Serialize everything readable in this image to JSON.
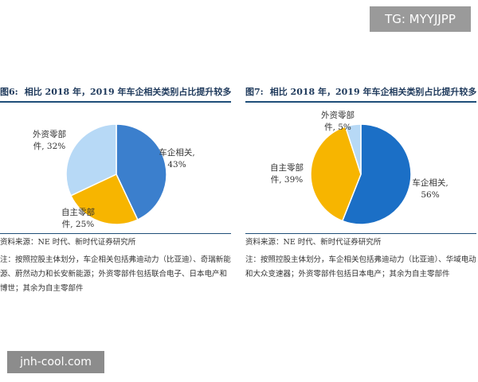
{
  "watermarks": {
    "top": "TG: MYYJJPP",
    "bottom": "jnh-cool.com"
  },
  "panels": [
    {
      "fig_num": "图6:",
      "title": "相比 2018 年，2019 年车企相关类别占比提升较多",
      "source": "资料来源：NE 时代、新时代证券研究所",
      "note": "注：按照控股主体划分，车企相关包括弗迪动力（比亚迪）、奇瑞新能源、蔚然动力和长安新能源；外资零部件包括联合电子、日本电产和博世；其余为自主零部件"
    },
    {
      "fig_num": "图7:",
      "title": "相比 2018 年，2019 年车企相关类别占比提升较多",
      "source": "资料来源：NE 时代、新时代证券研究所",
      "note": "注：按照控股主体划分，车企相关包括弗迪动力（比亚迪）、华域电动和大众变速器；外资零部件包括日本电产；其余为自主零部件"
    }
  ],
  "chart_data": [
    {
      "type": "pie",
      "slices": [
        {
          "label_lines": [
            "车企相关,",
            "43%"
          ],
          "value": 43,
          "color": "#3b7fcd"
        },
        {
          "label_lines": [
            "自主零部",
            "件, 25%"
          ],
          "value": 25,
          "color": "#f7b500"
        },
        {
          "label_lines": [
            "外资零部",
            "件, 32%"
          ],
          "value": 32,
          "color": "#b7d9f6"
        }
      ]
    },
    {
      "type": "pie",
      "slices": [
        {
          "label_lines": [
            "车企相关,",
            "56%"
          ],
          "value": 56,
          "color": "#1b6fc6"
        },
        {
          "label_lines": [
            "自主零部",
            "件, 39%"
          ],
          "value": 39,
          "color": "#f7b500"
        },
        {
          "label_lines": [
            "外资零部",
            "件, 5%"
          ],
          "value": 5,
          "color": "#b7d9f6"
        }
      ]
    }
  ]
}
